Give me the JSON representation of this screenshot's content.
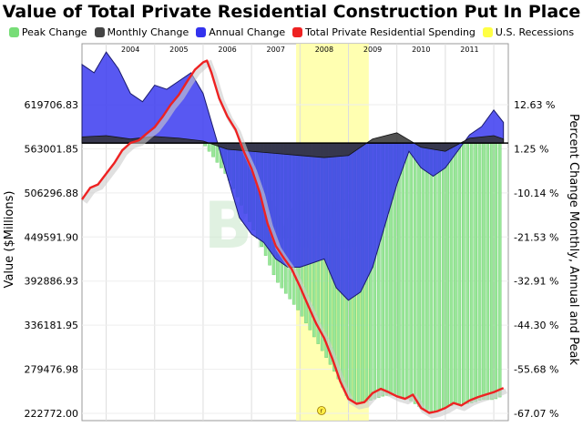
{
  "chart_data": {
    "type": "line",
    "title": "Value of Total Private Residential Construction Put In Place",
    "ylabel": "Value ($Millions)",
    "y2label": "Percent Change Monthly, Annual and Peak",
    "legend": [
      {
        "name": "Peak Change",
        "color": "#77dd77"
      },
      {
        "name": "Monthly Change",
        "color": "#444444"
      },
      {
        "name": "Annual Change",
        "color": "#3333ee"
      },
      {
        "name": "Total Private Residential Spending",
        "color": "#ee2222"
      },
      {
        "name": "U.S. Recessions",
        "color": "#ffff44"
      }
    ],
    "legend_placement": "top",
    "x_ticks": [
      "2004",
      "2005",
      "2006",
      "2007",
      "2008",
      "2009",
      "2010",
      "2011"
    ],
    "xlim": [
      2003.5,
      2012.3
    ],
    "y_ticks": [
      "619706.83",
      "563001.85",
      "506296.88",
      "449591.90",
      "392886.93",
      "336181.95",
      "279476.98",
      "222772.00"
    ],
    "ylim": [
      222772.0,
      676411.8
    ],
    "y2_ticks": [
      "12.63 %",
      "1.25 %",
      "-10.14 %",
      "-21.53 %",
      "-32.91 %",
      "-44.30 %",
      "-55.68 %",
      "-67.07 %"
    ],
    "y2lim": [
      -67.07,
      24.02
    ],
    "recession": [
      2007.92,
      2009.42
    ],
    "grid": true,
    "series": [
      {
        "name": "Total Private Residential Spending",
        "x": [
          2003.5,
          2003.67,
          2003.83,
          2004.0,
          2004.17,
          2004.33,
          2004.5,
          2004.67,
          2004.83,
          2005.0,
          2005.17,
          2005.33,
          2005.5,
          2005.67,
          2005.83,
          2006.0,
          2006.08,
          2006.17,
          2006.33,
          2006.5,
          2006.67,
          2006.83,
          2007.0,
          2007.17,
          2007.33,
          2007.5,
          2007.67,
          2007.83,
          2008.0,
          2008.17,
          2008.33,
          2008.5,
          2008.67,
          2008.83,
          2009.0,
          2009.17,
          2009.33,
          2009.5,
          2009.67,
          2009.83,
          2010.0,
          2010.17,
          2010.33,
          2010.5,
          2010.67,
          2010.83,
          2011.0,
          2011.17,
          2011.33,
          2011.5,
          2011.67,
          2011.83,
          2012.0,
          2012.2
        ],
        "values": [
          489000,
          503000,
          507000,
          520000,
          533000,
          548000,
          557000,
          560000,
          568000,
          576000,
          589000,
          603000,
          615000,
          631000,
          645000,
          654000,
          656000,
          642000,
          611000,
          589000,
          573000,
          548000,
          526000,
          497000,
          460000,
          433000,
          418000,
          405000,
          384000,
          361000,
          340000,
          322000,
          297000,
          270000,
          249000,
          243000,
          245000,
          256000,
          261000,
          257000,
          252000,
          249000,
          254000,
          238000,
          232000,
          234000,
          238000,
          244000,
          241000,
          247000,
          251000,
          254000,
          257000,
          262000
        ]
      },
      {
        "name": "Annual Change",
        "x": [
          2003.5,
          2003.75,
          2004.0,
          2004.25,
          2004.5,
          2004.75,
          2005.0,
          2005.25,
          2005.5,
          2005.75,
          2006.0,
          2006.25,
          2006.5,
          2006.75,
          2007.0,
          2007.25,
          2007.5,
          2007.75,
          2008.0,
          2008.25,
          2008.5,
          2008.75,
          2009.0,
          2009.25,
          2009.5,
          2009.75,
          2010.0,
          2010.25,
          2010.5,
          2010.75,
          2011.0,
          2011.25,
          2011.5,
          2011.75,
          2012.0,
          2012.2
        ],
        "values": [
          19,
          17,
          22,
          18,
          12,
          10,
          14,
          13,
          15,
          17,
          12,
          2,
          -8,
          -18,
          -22,
          -24,
          -28,
          -30,
          -30,
          -29,
          -28,
          -35,
          -38,
          -36,
          -30,
          -20,
          -10,
          -2,
          -6,
          -8,
          -6,
          -2,
          2,
          4,
          8,
          5
        ]
      },
      {
        "name": "Peak Change",
        "x": [
          2006.0,
          2006.25,
          2006.5,
          2006.75,
          2007.0,
          2007.25,
          2007.5,
          2007.75,
          2008.0,
          2008.25,
          2008.5,
          2008.75,
          2009.0,
          2009.25,
          2009.5,
          2009.75,
          2010.0,
          2010.25,
          2010.5,
          2010.75,
          2011.0,
          2011.25,
          2011.5,
          2011.75,
          2012.0,
          2012.2
        ],
        "values": [
          0,
          -4,
          -8,
          -14,
          -20,
          -26,
          -33,
          -37,
          -41,
          -46,
          -51,
          -56,
          -62,
          -63,
          -62,
          -61,
          -61,
          -62,
          -64,
          -65,
          -64,
          -63,
          -63,
          -62,
          -62,
          -61
        ]
      },
      {
        "name": "Monthly Change",
        "x": [
          2003.5,
          2004.0,
          2004.5,
          2005.0,
          2005.5,
          2006.0,
          2006.5,
          2007.0,
          2007.5,
          2008.0,
          2008.5,
          2009.0,
          2009.5,
          2010.0,
          2010.5,
          2011.0,
          2011.5,
          2012.0,
          2012.2
        ],
        "values": [
          1.5,
          1.8,
          1.0,
          1.6,
          1.2,
          0.5,
          -1.5,
          -2.0,
          -2.5,
          -3.0,
          -3.5,
          -3.0,
          1.0,
          2.5,
          -1.0,
          -2.0,
          1.2,
          1.8,
          1.0
        ]
      }
    ]
  },
  "watermark": "BMG",
  "footer_logo": "r"
}
